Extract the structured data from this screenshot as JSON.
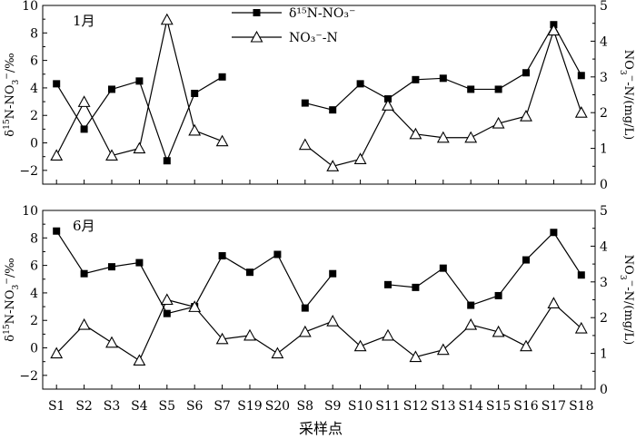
{
  "chart_data": [
    {
      "type": "line",
      "month_label": "1月",
      "categories": [
        "S1",
        "S2",
        "S3",
        "S4",
        "S5",
        "S6",
        "S7",
        "S19",
        "S20",
        "S8",
        "S9",
        "S10",
        "S11",
        "S12",
        "S13",
        "S14",
        "S15",
        "S16",
        "S17",
        "S18"
      ],
      "series": [
        {
          "name": "δ¹⁵N-NO₃⁻",
          "marker": "filled-square",
          "axis": "left",
          "values": [
            4.3,
            1.0,
            3.9,
            4.5,
            -1.3,
            3.6,
            4.8,
            null,
            null,
            2.9,
            2.4,
            4.3,
            3.2,
            4.6,
            4.7,
            3.9,
            3.9,
            5.1,
            8.6,
            4.9
          ]
        },
        {
          "name": "NO₃⁻-N",
          "marker": "open-triangle",
          "axis": "right",
          "values": [
            0.8,
            2.3,
            0.8,
            1.0,
            4.6,
            1.5,
            1.2,
            null,
            null,
            1.1,
            0.5,
            0.7,
            2.2,
            1.4,
            1.3,
            1.3,
            1.7,
            1.9,
            4.3,
            2.0
          ]
        }
      ],
      "ylim_left": [
        -3,
        10
      ],
      "ylim_right": [
        0,
        5
      ],
      "yticks_left": [
        -2,
        0,
        2,
        4,
        6,
        8,
        10
      ],
      "yticks_right": [
        0,
        1,
        2,
        3,
        4,
        5
      ],
      "ylabel_left": "δ15N-NO3−/‰",
      "ylabel_right": "NO3−-N/(mg/L)",
      "legend": "top-center"
    },
    {
      "type": "line",
      "month_label": "6月",
      "categories": [
        "S1",
        "S2",
        "S3",
        "S4",
        "S5",
        "S6",
        "S7",
        "S19",
        "S20",
        "S8",
        "S9",
        "S10",
        "S11",
        "S12",
        "S13",
        "S14",
        "S15",
        "S16",
        "S17",
        "S18"
      ],
      "series": [
        {
          "name": "δ¹⁵N-NO₃⁻",
          "marker": "filled-square",
          "axis": "left",
          "values": [
            8.5,
            5.4,
            5.9,
            6.2,
            2.5,
            3.0,
            6.7,
            5.5,
            6.8,
            2.9,
            5.4,
            null,
            4.6,
            4.4,
            5.8,
            3.1,
            3.8,
            6.4,
            8.4,
            5.3
          ]
        },
        {
          "name": "NO₃⁻-N",
          "marker": "open-triangle",
          "axis": "right",
          "values": [
            1.0,
            1.8,
            1.3,
            0.8,
            2.5,
            2.3,
            1.4,
            1.5,
            1.0,
            1.6,
            1.9,
            1.2,
            1.5,
            0.9,
            1.1,
            1.8,
            1.6,
            1.2,
            2.4,
            1.7
          ]
        }
      ],
      "ylim_left": [
        -3,
        10
      ],
      "ylim_right": [
        0,
        5
      ],
      "yticks_left": [
        -2,
        0,
        2,
        4,
        6,
        8,
        10
      ],
      "yticks_right": [
        0,
        1,
        2,
        3,
        4,
        5
      ],
      "ylabel_left": "δ15N-NO3−/‰",
      "ylabel_right": "NO3−-N/(mg/L)"
    }
  ],
  "xlabel": "采样点",
  "colors": {
    "line": "#000000",
    "marker_fill": "#000000",
    "open_marker_fill": "#ffffff",
    "background": "#ffffff"
  }
}
